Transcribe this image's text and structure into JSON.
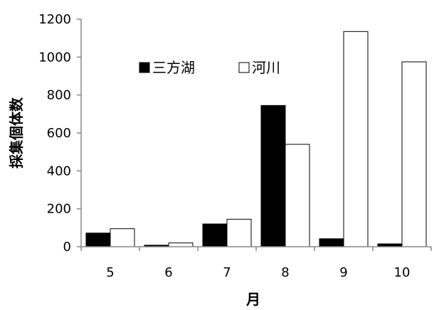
{
  "chart_data": {
    "type": "bar",
    "title": "",
    "xlabel": "月",
    "ylabel": "採集個体数",
    "categories": [
      "5",
      "6",
      "7",
      "8",
      "9",
      "10"
    ],
    "ylim": [
      0,
      1200
    ],
    "yticks": [
      0,
      200,
      400,
      600,
      800,
      1000,
      1200
    ],
    "grid": false,
    "legend_position": "top-center",
    "series": [
      {
        "name": "三方湖",
        "values": [
          72,
          8,
          120,
          745,
          42,
          15
        ],
        "color": "#000000"
      },
      {
        "name": "河川",
        "values": [
          95,
          20,
          145,
          540,
          1135,
          975
        ],
        "color": "#ffffff"
      }
    ]
  }
}
